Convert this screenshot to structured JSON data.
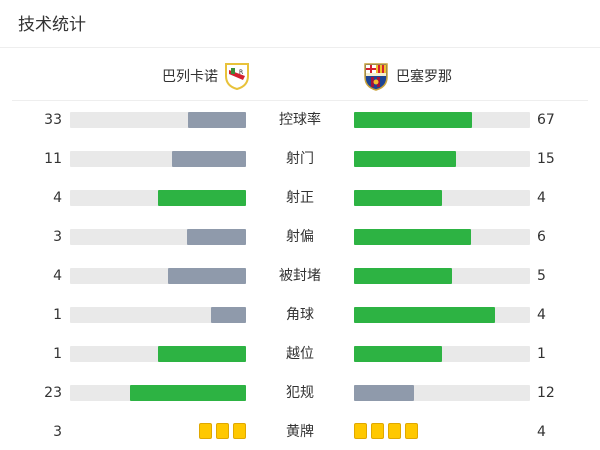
{
  "title": "技术统计",
  "teams": {
    "home": {
      "name": "巴列卡诺",
      "logo": "rayo-vallecano-crest"
    },
    "away": {
      "name": "巴塞罗那",
      "logo": "fc-barcelona-crest"
    }
  },
  "colors": {
    "leader": "#2db343",
    "trailer": "#8f9aab",
    "track": "#e9e9e9",
    "card": "#ffc800"
  },
  "stats": [
    {
      "label": "控球率",
      "home": "33",
      "away": "67"
    },
    {
      "label": "射门",
      "home": "11",
      "away": "15"
    },
    {
      "label": "射正",
      "home": "4",
      "away": "4"
    },
    {
      "label": "射偏",
      "home": "3",
      "away": "6"
    },
    {
      "label": "被封堵",
      "home": "4",
      "away": "5"
    },
    {
      "label": "角球",
      "home": "1",
      "away": "4"
    },
    {
      "label": "越位",
      "home": "1",
      "away": "1"
    },
    {
      "label": "犯规",
      "home": "23",
      "away": "12"
    }
  ],
  "yellow_cards": {
    "label": "黄牌",
    "home": "3",
    "away": "4"
  }
}
